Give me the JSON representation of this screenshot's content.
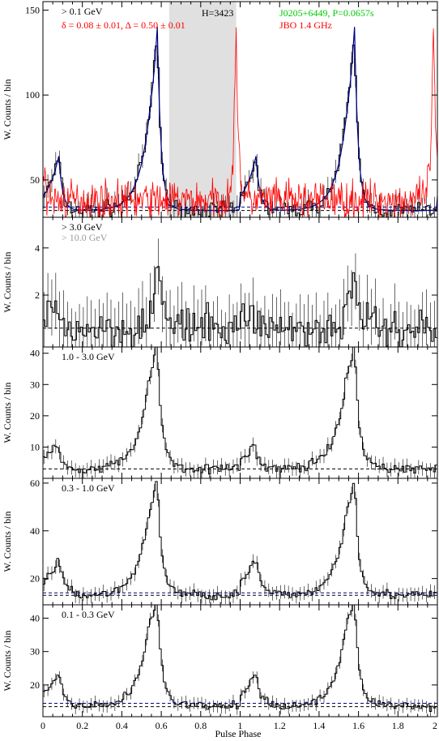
{
  "figure": {
    "xlabel": "Pulse Phase",
    "x_tick_labels": [
      "0",
      "0.2",
      "0.4",
      "0.6",
      "0.8",
      "1",
      "1.2",
      "1.4",
      "1.6",
      "1.8",
      "2"
    ]
  },
  "chart_data": [
    {
      "type": "line",
      "panel": "top",
      "xlim": [
        0,
        2
      ],
      "ylim": [
        28,
        155
      ],
      "yticks": [
        50,
        100,
        150
      ],
      "ylabel": "W. Counts / bin",
      "labels": {
        "energy": "> 0.1 GeV",
        "fit": "δ = 0.08 ± 0.01, Δ = 0.50 ± 0.01",
        "htest": "H=3423",
        "pulsar": "J0205+6449, P=0.0657s",
        "radio": "JBO 1.4 GHz"
      },
      "colors": {
        "gamma": "#000000",
        "fit": "#00008b",
        "radio": "#ff0000",
        "pulsar_label": "#00cc00",
        "offpulse": "#e0e0e0"
      },
      "offpulse_region": [
        0.64,
        0.98
      ],
      "baselines": [
        32,
        34
      ],
      "peaks": [
        {
          "phase": 0.08,
          "height": 64,
          "width": 0.02
        },
        {
          "phase": 0.58,
          "height": 136,
          "width": 0.018
        },
        {
          "phase": 0.54,
          "height": 40,
          "width": 0.06
        }
      ],
      "radio_peak": {
        "phase": 0.98,
        "height": 142
      }
    },
    {
      "type": "line",
      "panel": "gt3",
      "xlim": [
        0,
        2
      ],
      "ylim": [
        -0.2,
        5.3
      ],
      "yticks": [
        2,
        4
      ],
      "ylabel": "W. Counts / bin",
      "labels": {
        "energy": "> 3.0 GeV",
        "energy2": "> 10.0 GeV"
      },
      "colors": {
        "energy2": "#999999"
      },
      "baselines": [
        0.6
      ],
      "peaks": [
        {
          "phase": 0.58,
          "height": 3.2,
          "width": 0.03
        },
        {
          "phase": 0.07,
          "height": 1.5,
          "width": 0.02
        }
      ]
    },
    {
      "type": "line",
      "panel": "1-3",
      "xlim": [
        0,
        2
      ],
      "ylim": [
        0,
        42
      ],
      "yticks": [
        10,
        20,
        30,
        40
      ],
      "ylabel": "W. Counts / bin",
      "labels": {
        "energy": "1.0 - 3.0 GeV"
      },
      "baselines": [
        3
      ],
      "peaks": [
        {
          "phase": 0.07,
          "height": 12,
          "width": 0.02
        },
        {
          "phase": 0.58,
          "height": 39,
          "width": 0.02
        },
        {
          "phase": 0.54,
          "height": 14,
          "width": 0.06
        }
      ]
    },
    {
      "type": "line",
      "panel": "0.3-1",
      "xlim": [
        0,
        2
      ],
      "ylim": [
        9,
        62
      ],
      "yticks": [
        20,
        40,
        60
      ],
      "ylabel": "W. Counts / bin",
      "labels": {
        "energy": "0.3 - 1.0 GeV"
      },
      "baselines": [
        13,
        14
      ],
      "peaks": [
        {
          "phase": 0.08,
          "height": 29,
          "width": 0.025
        },
        {
          "phase": 0.58,
          "height": 57,
          "width": 0.02
        },
        {
          "phase": 0.54,
          "height": 26,
          "width": 0.06
        }
      ]
    },
    {
      "type": "line",
      "panel": "0.1-0.3",
      "xlim": [
        0,
        2
      ],
      "ylim": [
        10.5,
        44
      ],
      "yticks": [
        20,
        30,
        40
      ],
      "ylabel": "W. Counts / bin",
      "labels": {
        "energy": "0.1 - 0.3 GeV"
      },
      "baselines": [
        13.5,
        14.5
      ],
      "peaks": [
        {
          "phase": 0.08,
          "height": 24,
          "width": 0.025
        },
        {
          "phase": 0.58,
          "height": 40,
          "width": 0.018
        },
        {
          "phase": 0.54,
          "height": 27,
          "width": 0.06
        }
      ]
    }
  ]
}
